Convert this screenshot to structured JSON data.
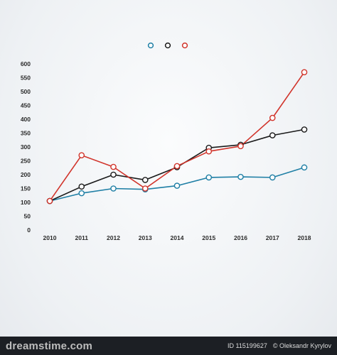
{
  "chart_data": {
    "type": "line",
    "title": "",
    "xlabel": "",
    "ylabel": "",
    "x": [
      "2010",
      "2011",
      "2012",
      "2013",
      "2014",
      "2015",
      "2016",
      "2017",
      "2018"
    ],
    "yticks": [
      "0",
      "50",
      "100",
      "150",
      "200",
      "250",
      "300",
      "350",
      "400",
      "450",
      "500",
      "550",
      "600"
    ],
    "ylim": [
      0,
      600
    ],
    "grid": false,
    "legend_position": "top-center",
    "series": [
      {
        "color": "#1f7fa5",
        "values": [
          105,
          133,
          150,
          147,
          160,
          190,
          192,
          190,
          226
        ]
      },
      {
        "color": "#1a1a1a",
        "values": [
          105,
          157,
          200,
          181,
          227,
          297,
          308,
          342,
          363
        ]
      },
      {
        "color": "#d1342b",
        "values": [
          105,
          270,
          228,
          150,
          231,
          284,
          303,
          405,
          570
        ]
      }
    ]
  },
  "footer": {
    "logo_text": "dreamstime.com",
    "id_text": "ID 115199627",
    "author_text": "© Oleksandr Kyrylov"
  }
}
